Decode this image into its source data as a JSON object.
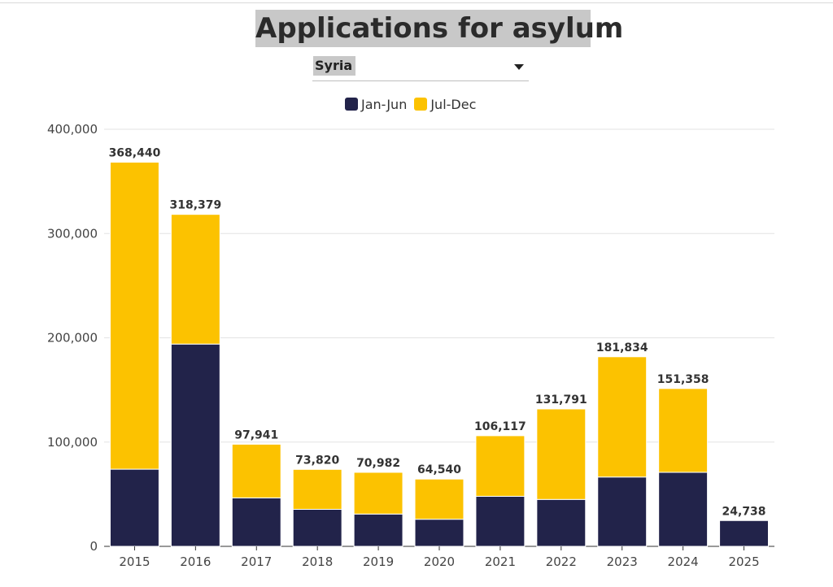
{
  "title": "Applications for asylum",
  "selector": {
    "value": "Syria"
  },
  "legend": [
    {
      "label": "Jan-Jun",
      "color": "#22234a"
    },
    {
      "label": "Jul-Dec",
      "color": "#fcc200"
    }
  ],
  "chart_data": {
    "type": "bar",
    "stacked": true,
    "categories": [
      "2015",
      "2016",
      "2017",
      "2018",
      "2019",
      "2020",
      "2021",
      "2022",
      "2023",
      "2024",
      "2025"
    ],
    "series": [
      {
        "name": "Jan-Jun",
        "color": "#22234a",
        "values": [
          74000,
          194000,
          46500,
          35500,
          31000,
          26000,
          48000,
          45000,
          66500,
          71000,
          24738
        ]
      },
      {
        "name": "Jul-Dec",
        "color": "#fcc200",
        "values": [
          294440,
          124379,
          51441,
          38320,
          39982,
          38540,
          58117,
          86791,
          115334,
          80358,
          0
        ]
      }
    ],
    "totals": [
      368440,
      318379,
      97941,
      73820,
      70982,
      64540,
      106117,
      131791,
      181834,
      151358,
      24738
    ],
    "total_labels": [
      "368,440",
      "318,379",
      "97,941",
      "73,820",
      "70,982",
      "64,540",
      "106,117",
      "131,791",
      "181,834",
      "151,358",
      "24,738"
    ],
    "ylim": [
      0,
      400000
    ],
    "yticks": [
      0,
      100000,
      200000,
      300000,
      400000
    ],
    "ytick_labels": [
      "0",
      "100,000",
      "200,000",
      "300,000",
      "400,000"
    ],
    "grid": true,
    "legend_position": "top-center"
  }
}
